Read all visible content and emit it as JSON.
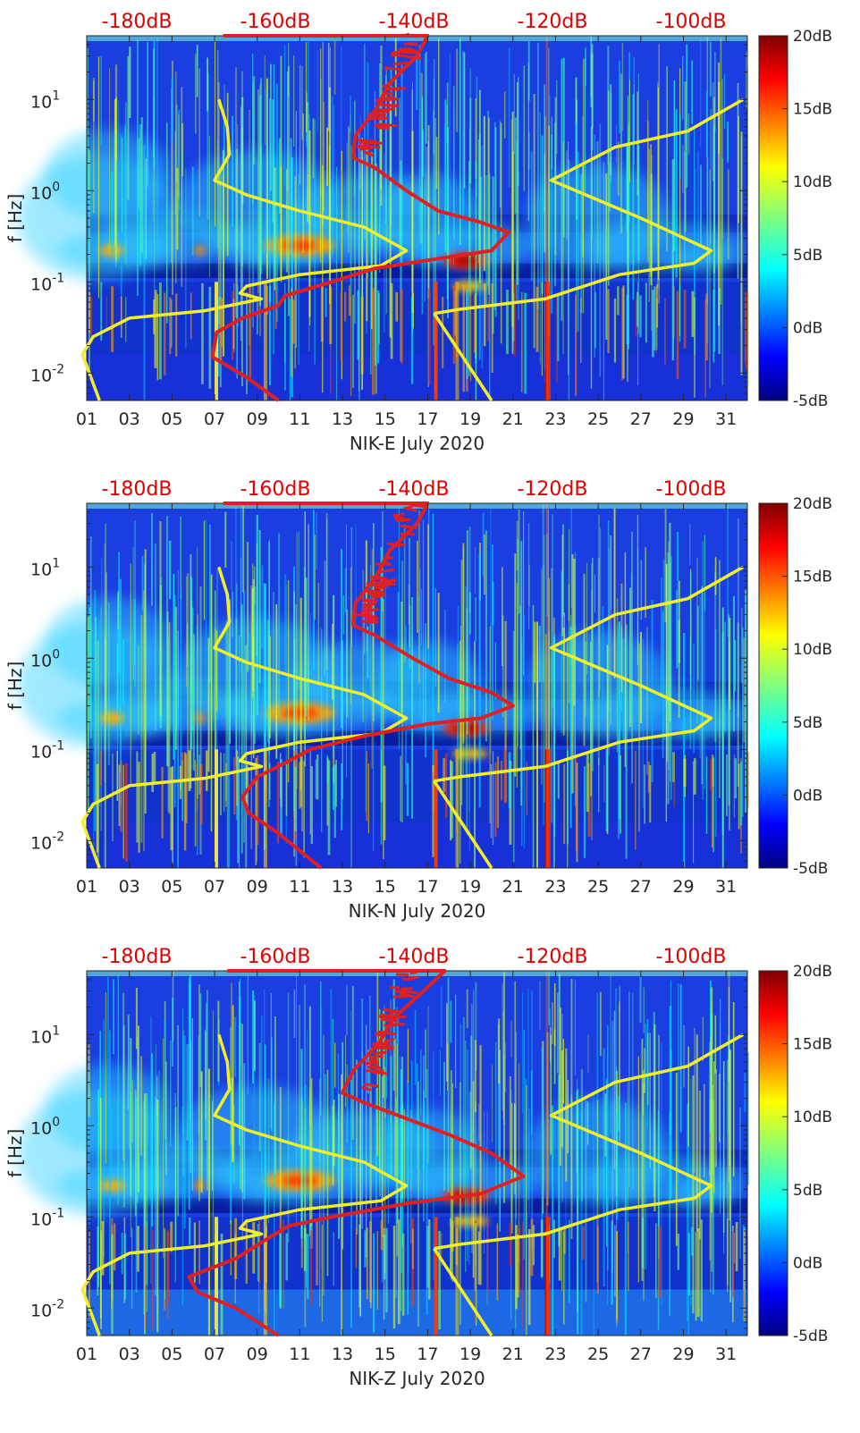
{
  "colors": {
    "noise_model_line": "#e02020",
    "reference_lines": "#f2ef2a",
    "top_scale_text": "#e00000",
    "colormap": "jet"
  },
  "chart_data": [
    {
      "type": "heatmap",
      "title": "",
      "xlabel": "NIK-E July 2020",
      "ylabel": "f [Hz]",
      "x_ticks": [
        "01",
        "03",
        "05",
        "07",
        "09",
        "11",
        "13",
        "15",
        "17",
        "19",
        "21",
        "23",
        "25",
        "27",
        "29",
        "31"
      ],
      "y_scale": "log",
      "ylim": [
        0.005,
        50
      ],
      "y_ticks": [
        "10-2",
        "10-1",
        "100",
        "101"
      ],
      "top_scale_labels": [
        "-180dB",
        "-160dB",
        "-140dB",
        "-120dB",
        "-100dB"
      ],
      "colorbar": {
        "range": [
          -5,
          20
        ],
        "ticks": [
          "20dB",
          "15dB",
          "10dB",
          "5dB",
          "0dB",
          "-5dB"
        ]
      },
      "red_curve": [
        [
          7.4,
          50
        ],
        [
          17,
          50
        ],
        [
          16.5,
          30
        ],
        [
          15.2,
          15
        ],
        [
          14.6,
          8
        ],
        [
          13.6,
          4
        ],
        [
          13.5,
          2.3
        ],
        [
          14.5,
          1.8
        ],
        [
          16,
          1.0
        ],
        [
          17.5,
          0.6
        ],
        [
          19.5,
          0.45
        ],
        [
          20.8,
          0.35
        ],
        [
          20,
          0.22
        ],
        [
          17.5,
          0.18
        ],
        [
          14.5,
          0.14
        ],
        [
          12.5,
          0.1
        ],
        [
          10.3,
          0.07
        ],
        [
          10,
          0.055
        ],
        [
          8.3,
          0.04
        ],
        [
          7.1,
          0.028
        ],
        [
          6.9,
          0.015
        ],
        [
          8.5,
          0.009
        ],
        [
          10,
          0.005
        ]
      ],
      "yellow_left": [
        [
          7.2,
          10
        ],
        [
          7.6,
          5
        ],
        [
          7.7,
          2.5
        ],
        [
          7,
          1.3
        ],
        [
          8.5,
          0.9
        ],
        [
          11,
          0.6
        ],
        [
          14,
          0.4
        ],
        [
          16,
          0.22
        ],
        [
          14.8,
          0.15
        ],
        [
          11,
          0.12
        ],
        [
          8.5,
          0.09
        ],
        [
          8.2,
          0.075
        ],
        [
          9.2,
          0.065
        ],
        [
          6.5,
          0.048
        ],
        [
          3,
          0.04
        ],
        [
          1.3,
          0.025
        ],
        [
          0.8,
          0.016
        ],
        [
          1.6,
          0.005
        ]
      ],
      "yellow_mid": [
        [
          17.3,
          0.045
        ],
        [
          20,
          0.005
        ]
      ],
      "yellow_right": [
        [
          17.3,
          0.045
        ],
        [
          18.5,
          0.05
        ],
        [
          22.5,
          0.065
        ],
        [
          26,
          0.12
        ],
        [
          29.5,
          0.16
        ],
        [
          30.3,
          0.22
        ],
        [
          27,
          0.5
        ],
        [
          22.8,
          1.3
        ],
        [
          25.8,
          3.0
        ],
        [
          29.2,
          4.5
        ],
        [
          31.8,
          10
        ]
      ]
    },
    {
      "type": "heatmap",
      "title": "",
      "xlabel": "NIK-N July 2020",
      "ylabel": "f [Hz]",
      "x_ticks": [
        "01",
        "03",
        "05",
        "07",
        "09",
        "11",
        "13",
        "15",
        "17",
        "19",
        "21",
        "23",
        "25",
        "27",
        "29",
        "31"
      ],
      "y_scale": "log",
      "ylim": [
        0.005,
        50
      ],
      "y_ticks": [
        "10-2",
        "10-1",
        "100",
        "101"
      ],
      "top_scale_labels": [
        "-180dB",
        "-160dB",
        "-140dB",
        "-120dB",
        "-100dB"
      ],
      "colorbar": {
        "range": [
          -5,
          20
        ],
        "ticks": [
          "20dB",
          "15dB",
          "10dB",
          "5dB",
          "0dB",
          "-5dB"
        ]
      },
      "red_curve": [
        [
          7.4,
          50
        ],
        [
          17,
          50
        ],
        [
          16.5,
          30
        ],
        [
          15.2,
          15
        ],
        [
          14.6,
          8
        ],
        [
          13.6,
          4
        ],
        [
          13.5,
          2.3
        ],
        [
          14.5,
          1.8
        ],
        [
          16.3,
          1.0
        ],
        [
          18,
          0.6
        ],
        [
          20,
          0.42
        ],
        [
          21,
          0.3
        ],
        [
          19.5,
          0.22
        ],
        [
          17,
          0.19
        ],
        [
          14,
          0.14
        ],
        [
          11.5,
          0.1
        ],
        [
          10,
          0.065
        ],
        [
          9,
          0.05
        ],
        [
          8.3,
          0.03
        ],
        [
          8.6,
          0.02
        ],
        [
          10,
          0.012
        ],
        [
          12,
          0.005
        ]
      ],
      "yellow_left": [
        [
          7.2,
          10
        ],
        [
          7.6,
          5
        ],
        [
          7.7,
          2.5
        ],
        [
          7,
          1.3
        ],
        [
          8.5,
          0.9
        ],
        [
          11,
          0.6
        ],
        [
          14,
          0.4
        ],
        [
          16,
          0.22
        ],
        [
          14.8,
          0.15
        ],
        [
          11,
          0.12
        ],
        [
          8.5,
          0.09
        ],
        [
          8.2,
          0.075
        ],
        [
          9.2,
          0.065
        ],
        [
          6.5,
          0.048
        ],
        [
          3,
          0.04
        ],
        [
          1.3,
          0.025
        ],
        [
          0.8,
          0.016
        ],
        [
          1.6,
          0.005
        ]
      ],
      "yellow_mid": [
        [
          17.3,
          0.045
        ],
        [
          20,
          0.005
        ]
      ],
      "yellow_right": [
        [
          17.3,
          0.045
        ],
        [
          18.5,
          0.05
        ],
        [
          22.5,
          0.065
        ],
        [
          26,
          0.12
        ],
        [
          29.5,
          0.16
        ],
        [
          30.3,
          0.22
        ],
        [
          27,
          0.5
        ],
        [
          22.8,
          1.3
        ],
        [
          25.8,
          3.0
        ],
        [
          29.2,
          4.5
        ],
        [
          31.8,
          10
        ]
      ]
    },
    {
      "type": "heatmap",
      "title": "",
      "xlabel": "NIK-Z July 2020",
      "ylabel": "f [Hz]",
      "x_ticks": [
        "01",
        "03",
        "05",
        "07",
        "09",
        "11",
        "13",
        "15",
        "17",
        "19",
        "21",
        "23",
        "25",
        "27",
        "29",
        "31"
      ],
      "y_scale": "log",
      "ylim": [
        0.005,
        50
      ],
      "y_ticks": [
        "10-2",
        "10-1",
        "100",
        "101"
      ],
      "top_scale_labels": [
        "-180dB",
        "-160dB",
        "-140dB",
        "-120dB",
        "-100dB"
      ],
      "colorbar": {
        "range": [
          -5,
          20
        ],
        "ticks": [
          "20dB",
          "15dB",
          "10dB",
          "5dB",
          "0dB",
          "-5dB"
        ]
      },
      "red_curve": [
        [
          7.6,
          50
        ],
        [
          17.8,
          50
        ],
        [
          16.8,
          30
        ],
        [
          15.4,
          15
        ],
        [
          14.7,
          8
        ],
        [
          13.5,
          4
        ],
        [
          13,
          2.3
        ],
        [
          14,
          1.8
        ],
        [
          16,
          1.2
        ],
        [
          18,
          0.8
        ],
        [
          20,
          0.5
        ],
        [
          21.5,
          0.28
        ],
        [
          19.5,
          0.18
        ],
        [
          16,
          0.14
        ],
        [
          12.5,
          0.1
        ],
        [
          10.5,
          0.08
        ],
        [
          9.6,
          0.06
        ],
        [
          8,
          0.035
        ],
        [
          5.8,
          0.022
        ],
        [
          6.2,
          0.015
        ],
        [
          8,
          0.01
        ],
        [
          10,
          0.005
        ]
      ],
      "yellow_left": [
        [
          7.2,
          10
        ],
        [
          7.6,
          5
        ],
        [
          7.7,
          2.5
        ],
        [
          7,
          1.3
        ],
        [
          8.5,
          0.9
        ],
        [
          11,
          0.6
        ],
        [
          14,
          0.4
        ],
        [
          16,
          0.22
        ],
        [
          14.8,
          0.15
        ],
        [
          11,
          0.12
        ],
        [
          8.5,
          0.09
        ],
        [
          8.2,
          0.075
        ],
        [
          9.2,
          0.065
        ],
        [
          6.5,
          0.048
        ],
        [
          3,
          0.04
        ],
        [
          1.3,
          0.025
        ],
        [
          0.8,
          0.016
        ],
        [
          1.6,
          0.005
        ]
      ],
      "yellow_mid": [
        [
          17.3,
          0.045
        ],
        [
          20,
          0.005
        ]
      ],
      "yellow_right": [
        [
          17.3,
          0.045
        ],
        [
          18.5,
          0.05
        ],
        [
          22.5,
          0.065
        ],
        [
          26,
          0.12
        ],
        [
          29.5,
          0.16
        ],
        [
          30.3,
          0.22
        ],
        [
          27,
          0.5
        ],
        [
          22.8,
          1.3
        ],
        [
          25.8,
          3.0
        ],
        [
          29.2,
          4.5
        ],
        [
          31.8,
          10
        ]
      ]
    }
  ]
}
